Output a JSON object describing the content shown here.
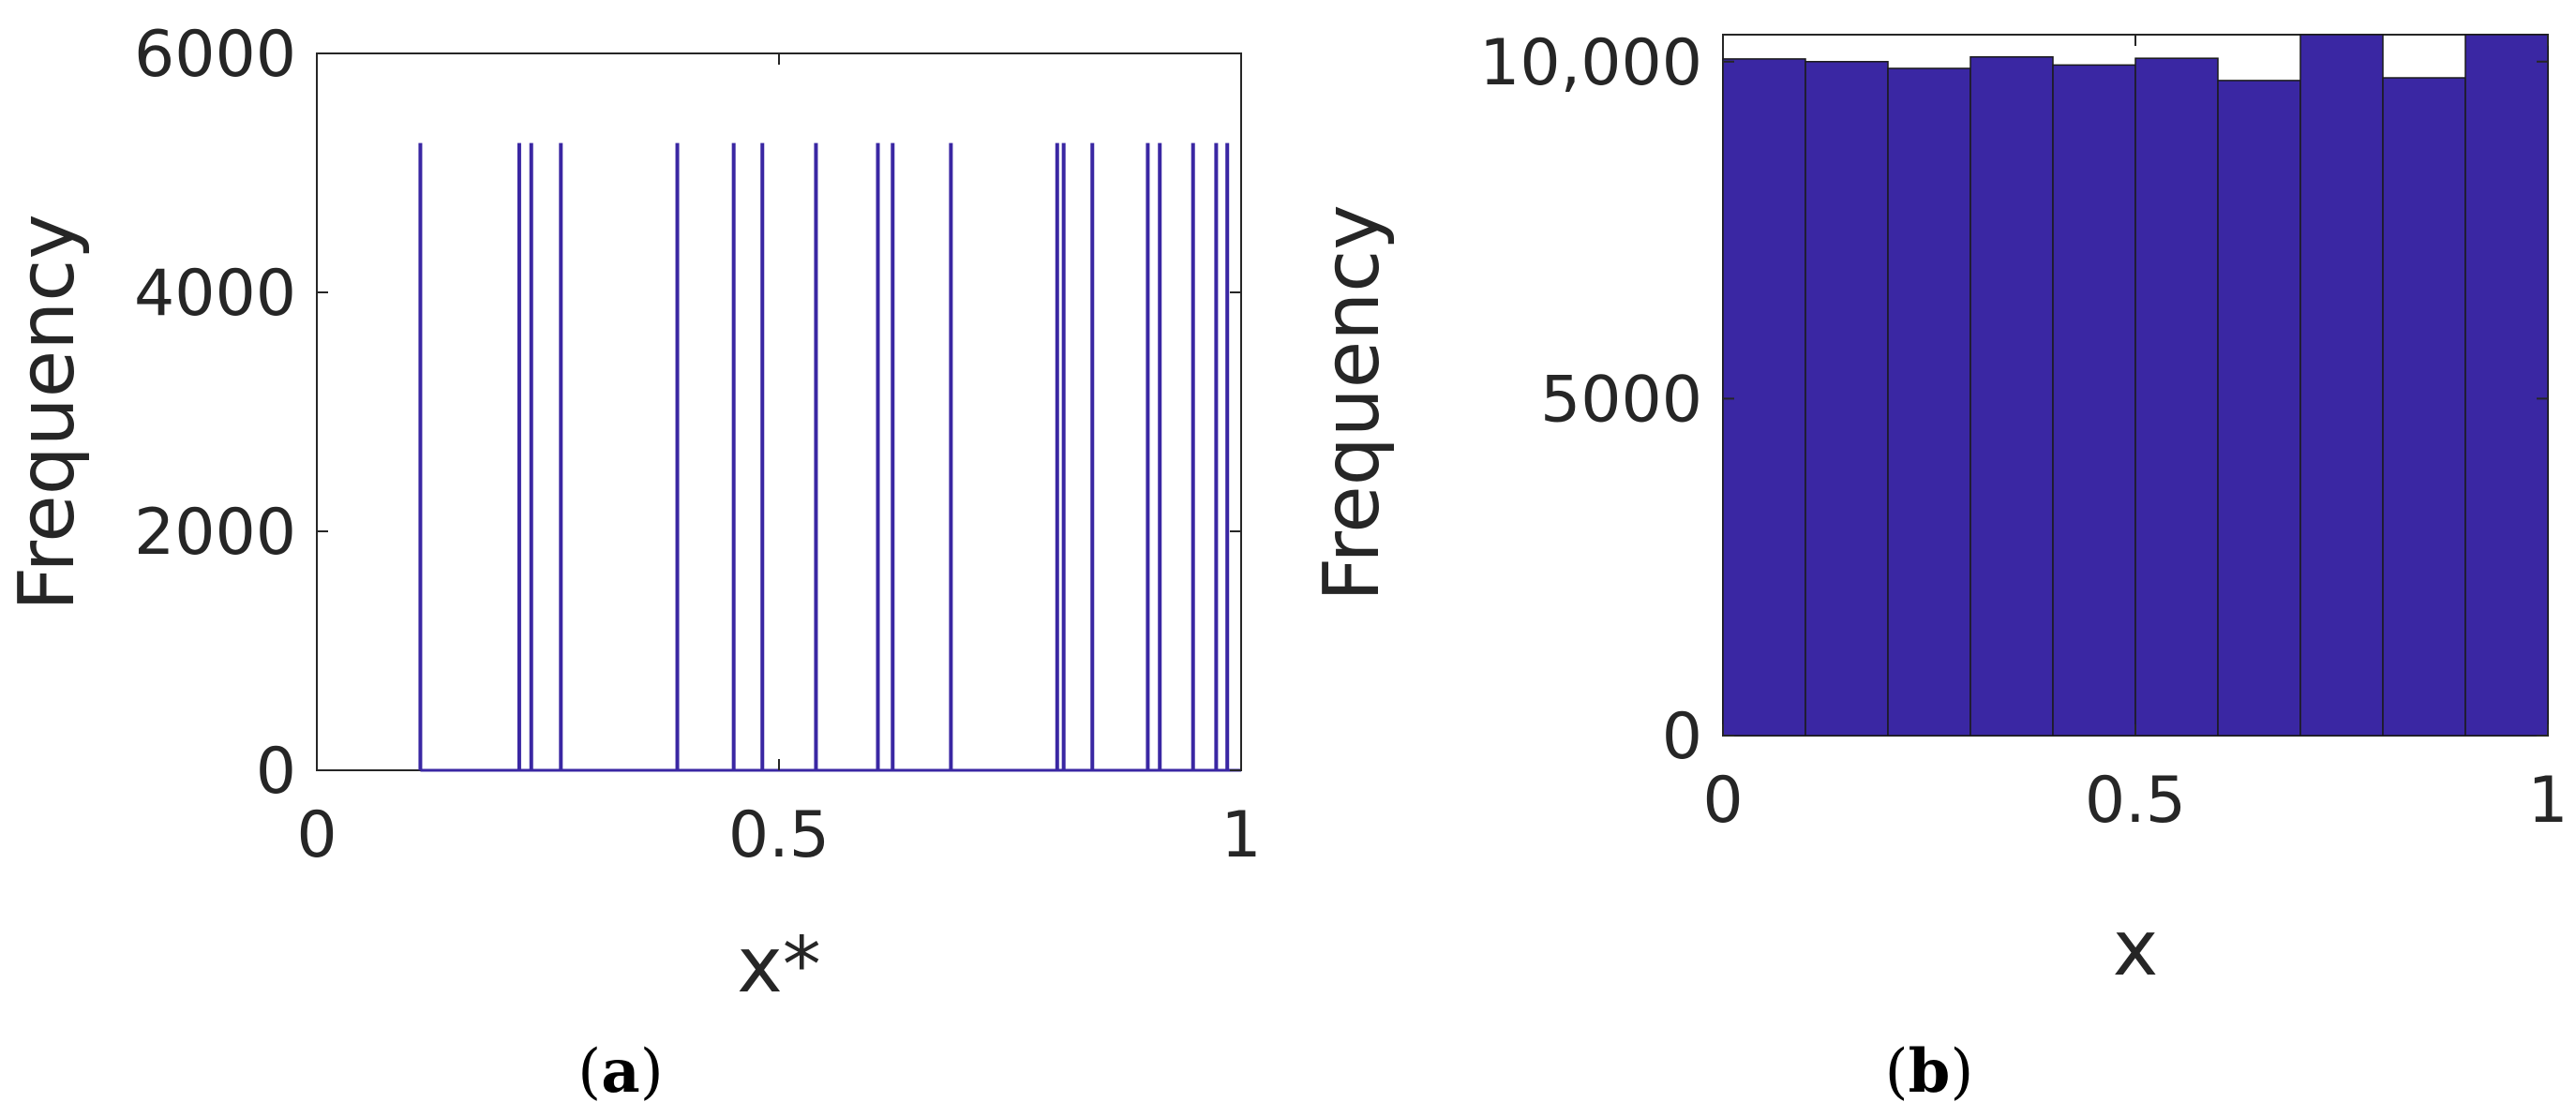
{
  "chart_data": [
    {
      "panel": "(a)",
      "panel_letter": "a",
      "type": "bar",
      "xlabel": "x*",
      "ylabel": "Frequency",
      "xlim": [
        0,
        1
      ],
      "ylim": [
        0,
        6000
      ],
      "xticks": [
        0,
        0.5,
        1
      ],
      "xtick_labels": [
        "0",
        "0.5",
        "1"
      ],
      "yticks": [
        0,
        2000,
        4000,
        6000
      ],
      "ytick_labels": [
        "0",
        "2000",
        "4000",
        "6000"
      ],
      "grid": false,
      "bar_color": "#3a27a3",
      "lines_x": [
        0.112,
        0.219,
        0.232,
        0.264,
        0.39,
        0.451,
        0.482,
        0.54,
        0.607,
        0.623,
        0.686,
        0.801,
        0.808,
        0.839,
        0.899,
        0.912,
        0.948,
        0.973,
        0.985
      ],
      "lines_y": 5250
    },
    {
      "panel": "(b)",
      "panel_letter": "b",
      "type": "bar",
      "xlabel": "x",
      "ylabel": "Frequency",
      "xlim": [
        0,
        1
      ],
      "ylim": [
        0,
        10400
      ],
      "xticks": [
        0,
        0.5,
        1
      ],
      "xtick_labels": [
        "0",
        "0.5",
        "1"
      ],
      "yticks": [
        0,
        5000,
        10000
      ],
      "ytick_labels": [
        "0",
        "5000",
        "10,000"
      ],
      "grid": false,
      "bar_color": "#3a27a3",
      "bin_edges": [
        0,
        0.1,
        0.2,
        0.3,
        0.4,
        0.5,
        0.6,
        0.7,
        0.8,
        0.9,
        1.0
      ],
      "values": [
        10040,
        10000,
        9900,
        10070,
        9950,
        10050,
        9720,
        10400,
        9760,
        10400
      ]
    }
  ]
}
